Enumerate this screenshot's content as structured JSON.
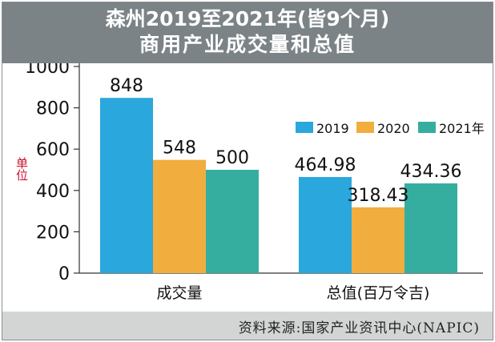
{
  "header": {
    "title_line1": "森州2019至2021年(皆9个月)",
    "title_line2": "商用产业成交量和总值"
  },
  "footer": {
    "source": "资料来源:国家产业资讯中心(NAPIC)"
  },
  "colors": {
    "header_bg": "#7b8386",
    "footer_bg": "#d3d5d4",
    "unit_label": "#c8102e",
    "series_2019": "#2aa7dc",
    "series_2020": "#f2ad3f",
    "series_2021": "#35aea0"
  },
  "chart_data": {
    "type": "bar",
    "categories": [
      "成交量",
      "总值(百万令吉)"
    ],
    "series": [
      {
        "name": "2019",
        "values": [
          848,
          464.98
        ],
        "labels": [
          "848",
          "464.98"
        ]
      },
      {
        "name": "2020",
        "values": [
          548,
          318.43
        ],
        "labels": [
          "548",
          "318.43"
        ]
      },
      {
        "name": "2021年",
        "values": [
          500,
          434.36
        ],
        "labels": [
          "500",
          "434.36"
        ]
      }
    ],
    "ylabel": "单位",
    "ylim": [
      0,
      1000
    ],
    "yticks": [
      0,
      200,
      400,
      600,
      800,
      1000
    ],
    "grid": false,
    "legend_position": "top-right"
  }
}
